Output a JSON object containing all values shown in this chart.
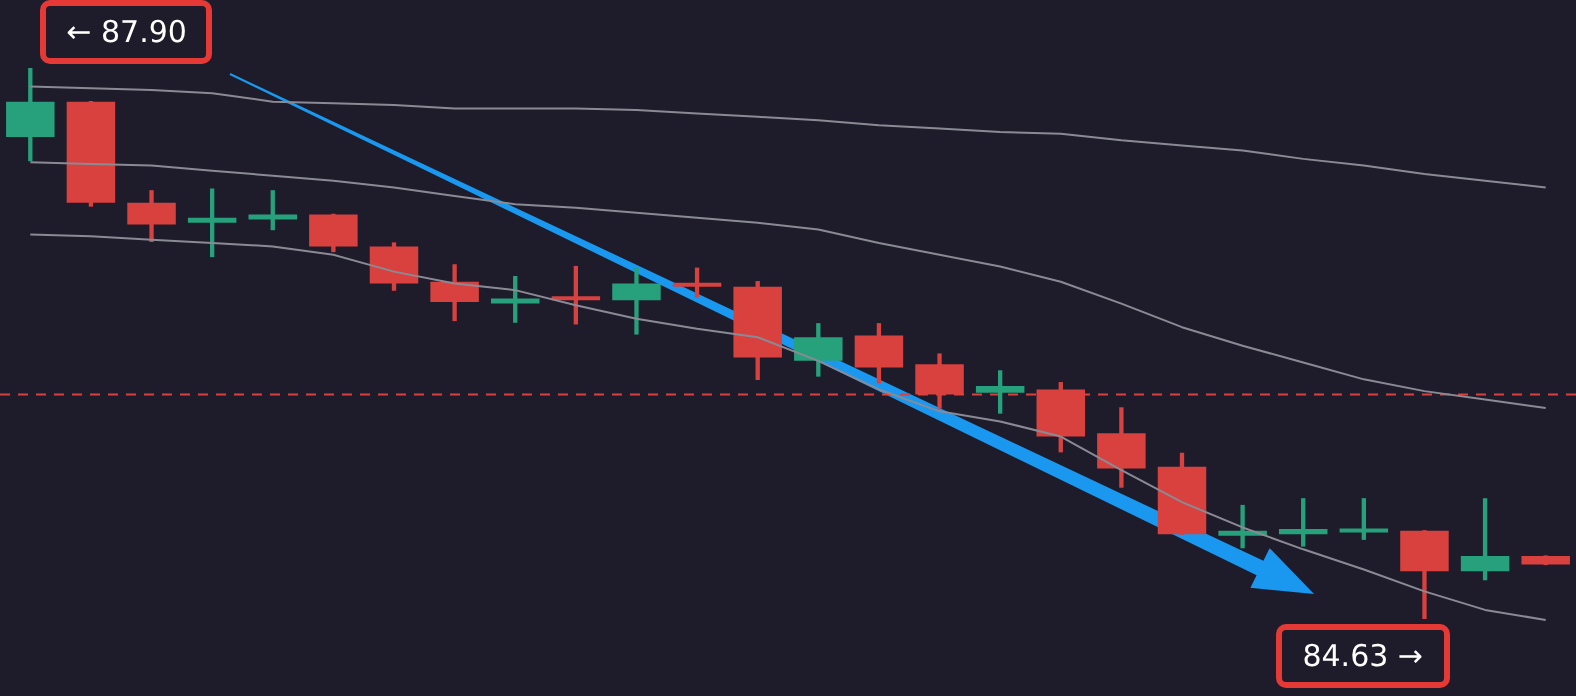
{
  "chart_data": {
    "type": "candlestick",
    "categories": [
      null,
      null,
      null,
      null,
      null,
      null,
      null,
      null,
      null,
      null,
      null,
      null,
      null,
      null,
      null,
      null,
      null,
      null,
      null,
      null,
      null,
      null,
      null,
      null,
      null,
      null
    ],
    "ohlc": [
      [
        87.49,
        87.9,
        87.35,
        87.7
      ],
      [
        87.7,
        87.7,
        87.08,
        87.1
      ],
      [
        87.1,
        87.17,
        86.87,
        86.97
      ],
      [
        86.98,
        87.18,
        86.78,
        87.01
      ],
      [
        87.0,
        87.17,
        86.94,
        87.03
      ],
      [
        87.03,
        87.03,
        86.81,
        86.84
      ],
      [
        86.84,
        86.86,
        86.58,
        86.62
      ],
      [
        86.63,
        86.73,
        86.4,
        86.51
      ],
      [
        86.5,
        86.66,
        86.39,
        86.53
      ],
      [
        86.54,
        86.72,
        86.38,
        86.52
      ],
      [
        86.52,
        86.71,
        86.32,
        86.62
      ],
      [
        86.62,
        86.71,
        86.54,
        86.6
      ],
      [
        86.6,
        86.63,
        86.05,
        86.18
      ],
      [
        86.16,
        86.38,
        86.07,
        86.3
      ],
      [
        86.31,
        86.38,
        86.03,
        86.12
      ],
      [
        86.14,
        86.2,
        85.88,
        85.96
      ],
      [
        85.97,
        86.1,
        85.85,
        86.01
      ],
      [
        85.99,
        86.03,
        85.62,
        85.71
      ],
      [
        85.73,
        85.88,
        85.41,
        85.52
      ],
      [
        85.53,
        85.61,
        85.13,
        85.13
      ],
      [
        85.12,
        85.3,
        85.05,
        85.15
      ],
      [
        85.13,
        85.34,
        85.06,
        85.16
      ],
      [
        85.14,
        85.34,
        85.1,
        85.16
      ],
      [
        85.15,
        85.15,
        84.63,
        84.91
      ],
      [
        84.91,
        85.34,
        84.86,
        85.0
      ],
      [
        85.0,
        85.0,
        84.95,
        84.95
      ]
    ],
    "colors": [
      "#26a17b",
      "#d9413f",
      "#d9413f",
      "#26a17b",
      "#26a17b",
      "#d9413f",
      "#d9413f",
      "#d9413f",
      "#26a17b",
      "#d9413f",
      "#26a17b",
      "#d9413f",
      "#d9413f",
      "#26a17b",
      "#d9413f",
      "#d9413f",
      "#26a17b",
      "#d9413f",
      "#d9413f",
      "#d9413f",
      "#26a17b",
      "#26a17b",
      "#26a17b",
      "#d9413f",
      "#26a17b",
      "#d9413f"
    ],
    "series": [
      {
        "type": "line",
        "color": "#8a8a94",
        "values": [
          87.79,
          87.78,
          87.77,
          87.75,
          87.7,
          87.69,
          87.68,
          87.66,
          87.66,
          87.66,
          87.65,
          87.63,
          87.61,
          87.59,
          87.56,
          87.54,
          87.52,
          87.51,
          87.47,
          87.44,
          87.41,
          87.36,
          87.32,
          87.27,
          87.23,
          87.19
        ]
      },
      {
        "type": "line",
        "color": "#8a8a94",
        "values": [
          87.34,
          87.33,
          87.32,
          87.29,
          87.26,
          87.23,
          87.19,
          87.14,
          87.09,
          87.07,
          87.04,
          87.01,
          86.98,
          86.94,
          86.86,
          86.79,
          86.72,
          86.63,
          86.5,
          86.36,
          86.25,
          86.15,
          86.05,
          85.98,
          85.93,
          85.88
        ]
      },
      {
        "type": "line",
        "color": "#8a8a94",
        "values": [
          86.91,
          86.9,
          86.88,
          86.86,
          86.84,
          86.79,
          86.69,
          86.62,
          86.58,
          86.49,
          86.41,
          86.35,
          86.3,
          86.16,
          85.99,
          85.86,
          85.8,
          85.71,
          85.51,
          85.32,
          85.17,
          85.04,
          84.92,
          84.79,
          84.68,
          84.62
        ]
      }
    ],
    "ref_lines": [
      {
        "axis": "y",
        "value": 85.96,
        "color": "#d9413f",
        "line_style": "dashed"
      }
    ],
    "annotations": [
      "← 87.90",
      "84.63 →"
    ],
    "tick_labels": false
  }
}
